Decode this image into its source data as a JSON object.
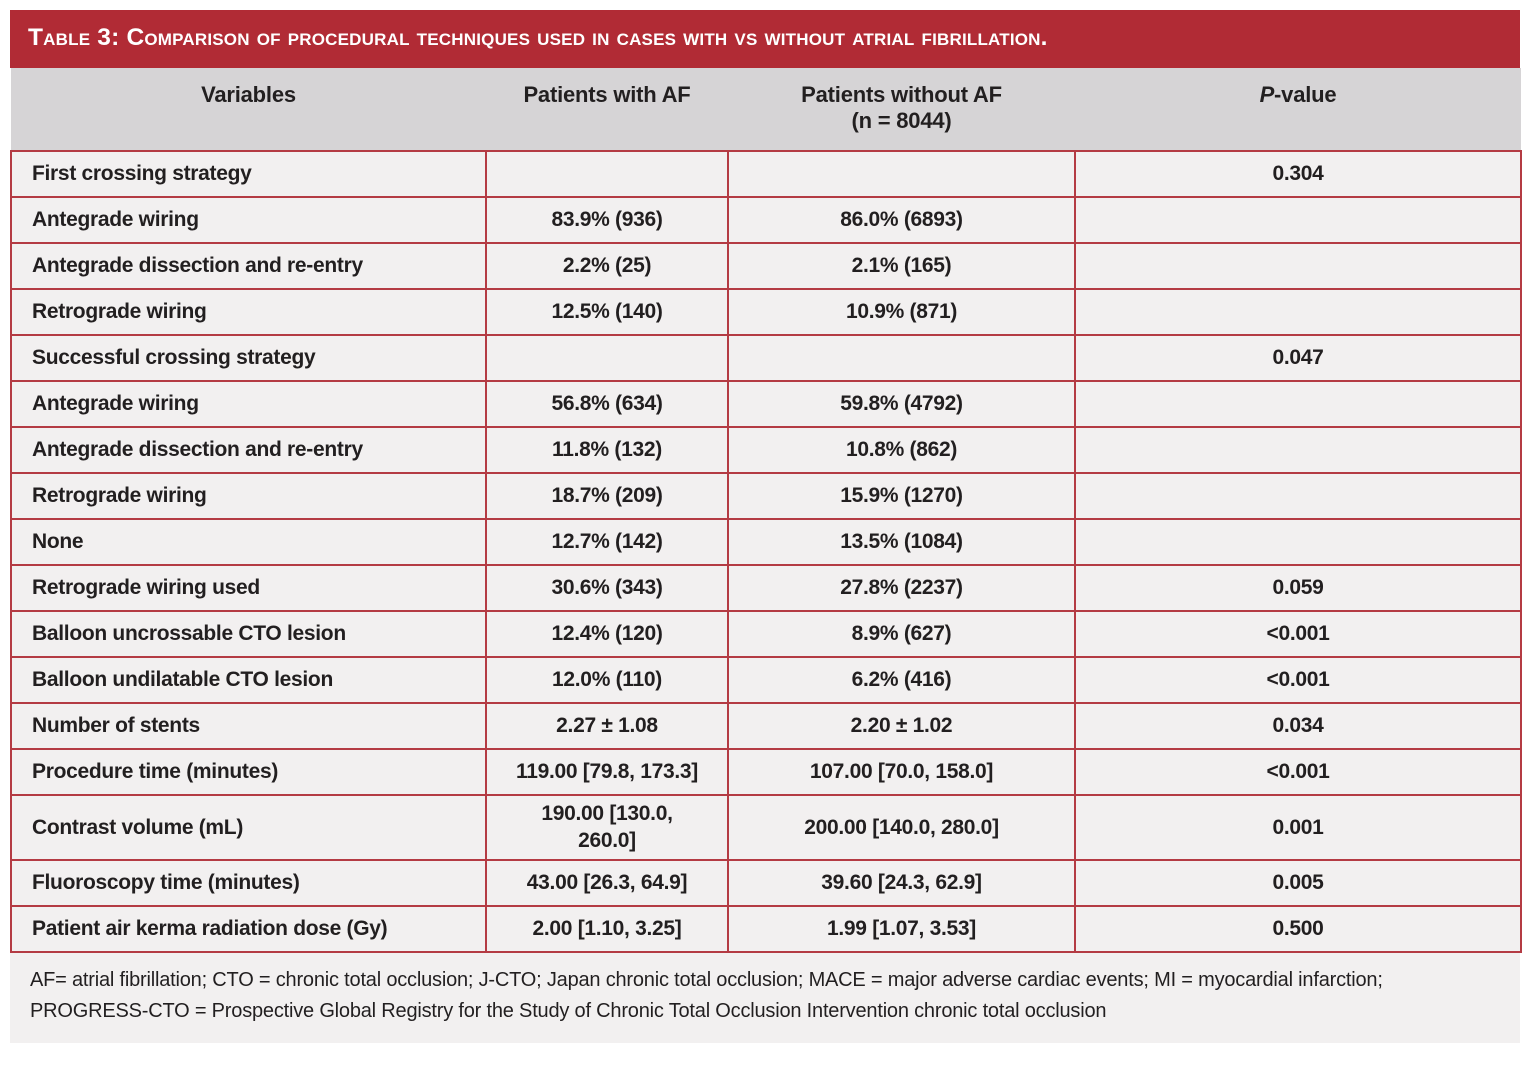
{
  "table": {
    "title": "Table 3: Comparison of procedural techniques used in cases with vs without atrial fibrillation.",
    "columns": {
      "variables": {
        "label": "Variables"
      },
      "with_af": {
        "label": "Patients with AF",
        "sub": ""
      },
      "without_af": {
        "label": "Patients without AF",
        "sub": "(n = 8044)"
      },
      "p_value": {
        "label_italic": "P",
        "label_rest": "-value"
      }
    },
    "rows": [
      {
        "variable": "First crossing strategy",
        "with_af": "",
        "without_af": "",
        "p_value": "0.304"
      },
      {
        "variable": "Antegrade wiring",
        "with_af": "83.9% (936)",
        "without_af": "86.0% (6893)",
        "p_value": ""
      },
      {
        "variable": "Antegrade dissection and re-entry",
        "with_af": "2.2% (25)",
        "without_af": "2.1% (165)",
        "p_value": ""
      },
      {
        "variable": "Retrograde wiring",
        "with_af": "12.5% (140)",
        "without_af": "10.9% (871)",
        "p_value": ""
      },
      {
        "variable": "Successful crossing strategy",
        "with_af": "",
        "without_af": "",
        "p_value": "0.047"
      },
      {
        "variable": "Antegrade wiring",
        "with_af": "56.8% (634)",
        "without_af": "59.8% (4792)",
        "p_value": ""
      },
      {
        "variable": "Antegrade dissection and re-entry",
        "with_af": "11.8% (132)",
        "without_af": "10.8% (862)",
        "p_value": ""
      },
      {
        "variable": "Retrograde wiring",
        "with_af": "18.7% (209)",
        "without_af": "15.9% (1270)",
        "p_value": ""
      },
      {
        "variable": "None",
        "with_af": "12.7% (142)",
        "without_af": "13.5% (1084)",
        "p_value": ""
      },
      {
        "variable": "Retrograde wiring used",
        "with_af": "30.6% (343)",
        "without_af": "27.8% (2237)",
        "p_value": "0.059"
      },
      {
        "variable": "Balloon uncrossable CTO lesion",
        "with_af": "12.4% (120)",
        "without_af": "8.9% (627)",
        "p_value": "<0.001"
      },
      {
        "variable": "Balloon undilatable CTO lesion",
        "with_af": "12.0% (110)",
        "without_af": "6.2% (416)",
        "p_value": "<0.001"
      },
      {
        "variable": "Number of stents",
        "with_af": "2.27 ± 1.08",
        "without_af": "2.20 ± 1.02",
        "p_value": "0.034"
      },
      {
        "variable": "Procedure time (minutes)",
        "with_af": "119.00 [79.8, 173.3]",
        "without_af": "107.00 [70.0, 158.0]",
        "p_value": "<0.001"
      },
      {
        "variable": "Contrast volume (mL)",
        "with_af": "190.00 [130.0, 260.0]",
        "without_af": "200.00 [140.0, 280.0]",
        "p_value": "0.001"
      },
      {
        "variable": "Fluoroscopy time (minutes)",
        "with_af": "43.00 [26.3, 64.9]",
        "without_af": "39.60 [24.3, 62.9]",
        "p_value": "0.005"
      },
      {
        "variable": "Patient air kerma radiation dose (Gy)",
        "with_af": "2.00 [1.10, 3.25]",
        "without_af": "1.99 [1.07, 3.53]",
        "p_value": "0.500"
      }
    ],
    "footnote_lines": [
      "AF= atrial fibrillation; CTO = chronic total occlusion; J-CTO; Japan chronic total occlusion; MACE = major adverse cardiac events; MI = myocardial infarction;",
      "PROGRESS-CTO = Prospective Global Registry for the Study of Chronic Total Occlusion Intervention chronic total occlusion"
    ]
  },
  "colors": {
    "title_bar_red": "#b12b35",
    "border_red": "#b43b43",
    "header_row_bg": "#d6d4d6",
    "cell_bg": "#f2f0f0",
    "text": "#221f20",
    "title_text": "#ffffff"
  }
}
